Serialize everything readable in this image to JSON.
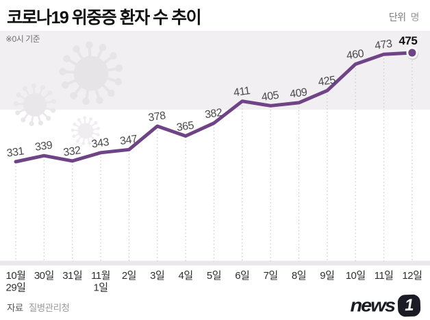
{
  "header": {
    "title": "코로나19 위중증 환자 수 추이",
    "unit_label": "단위",
    "unit_value": "명",
    "note": "※0시 기준"
  },
  "chart_data": {
    "type": "line",
    "title": "코로나19 위중증 환자 수 추이",
    "unit": "명",
    "basis": "0시 기준",
    "categories": [
      [
        "10월",
        "29일"
      ],
      [
        "30일"
      ],
      [
        "31일"
      ],
      [
        "11월",
        "1일"
      ],
      [
        "2일"
      ],
      [
        "3일"
      ],
      [
        "4일"
      ],
      [
        "5일"
      ],
      [
        "6일"
      ],
      [
        "7일"
      ],
      [
        "8일"
      ],
      [
        "9일"
      ],
      [
        "10일"
      ],
      [
        "11일"
      ],
      [
        "12일"
      ]
    ],
    "values": [
      331,
      339,
      332,
      343,
      347,
      378,
      365,
      382,
      411,
      405,
      409,
      425,
      460,
      473,
      475
    ],
    "ylim": [
      320,
      490
    ],
    "grid": "dotted-vertical",
    "legend": "none",
    "highlight_last_point": true,
    "line_color": "#6f4487",
    "marker_color": "#6f4487",
    "value_label_color": "#4a4a4a",
    "last_value_label_color": "#111111",
    "axis_label_color": "#2e2e2e",
    "gridline_color": "#c8c8c8",
    "axis_band_color": "#eae8ea",
    "virus_icon_color": "#e6e4e6"
  },
  "footer": {
    "source_label": "자료",
    "source_value": "질병관리청",
    "logo_text": "news",
    "logo_badge": "1"
  }
}
